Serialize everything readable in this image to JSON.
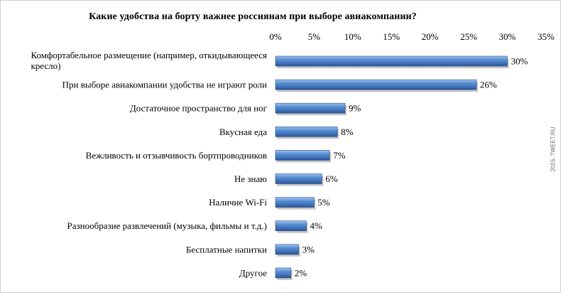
{
  "watermark": "2015. TWEET.RU",
  "chart_data": {
    "type": "bar",
    "orientation": "horizontal",
    "title": "Какие удобства на борту важнее россиянам при выборе авиакомпании?",
    "xlabel": "",
    "ylabel": "",
    "xlim": [
      0,
      35
    ],
    "xticks": [
      "0%",
      "5%",
      "10%",
      "15%",
      "20%",
      "25%",
      "30%",
      "35%"
    ],
    "x_axis_position": "top",
    "grid": false,
    "legend": "none",
    "bar_color": "#4f81bd",
    "categories": [
      [
        "Комфортабельное размещение (например, откидывающееся",
        "кресло)"
      ],
      [
        "При выборе авиакомпании удобства не играют роли"
      ],
      [
        "Достаточное пространство для  ног"
      ],
      [
        "Вкусная еда"
      ],
      [
        "Вежливость  и отзывчивость  бортпроводников"
      ],
      [
        "Не знаю"
      ],
      [
        "Наличие Wi-Fi"
      ],
      [
        "Разнообразие развлечений (музыка, фильмы и т.д.)"
      ],
      [
        "Бесплатные напитки"
      ],
      [
        "Другое"
      ]
    ],
    "values": [
      30,
      26,
      9,
      8,
      7,
      6,
      5,
      4,
      3,
      2
    ],
    "value_labels": [
      "30%",
      "26%",
      "9%",
      "8%",
      "7%",
      "6%",
      "5%",
      "4%",
      "3%",
      "2%"
    ]
  }
}
